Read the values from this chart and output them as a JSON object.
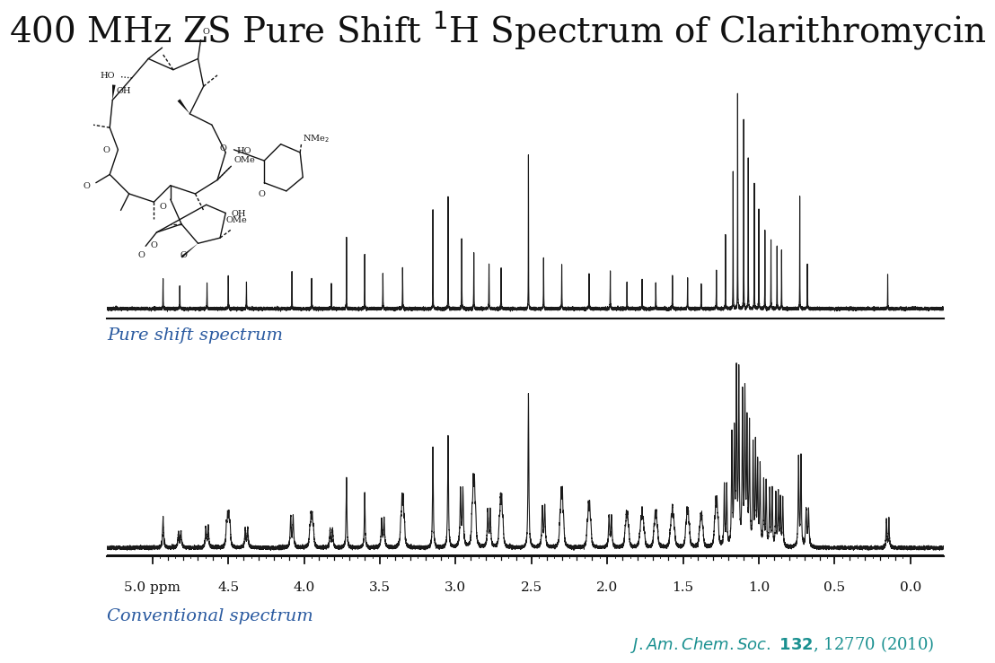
{
  "title": "400 MHz ZS Pure Shift $^{1}$H Spectrum of Clarithromycin",
  "title_fontsize": 28,
  "background_color": "#ffffff",
  "spectrum_color": "#1a1a1a",
  "label_color_blue": "#2a5aa0",
  "citation_color": "#1a9090",
  "x_ticks": [
    5.0,
    4.5,
    4.0,
    3.5,
    3.0,
    2.5,
    2.0,
    1.5,
    1.0,
    0.5,
    0.0
  ],
  "x_tick_labels": [
    "5.0 ppm",
    "4.5",
    "4.0",
    "3.5",
    "3.0",
    "2.5",
    "2.0",
    "1.5",
    "1.0",
    "0.5",
    "0.0"
  ],
  "pure_shift_label": "Pure shift spectrum",
  "conventional_label": "Conventional spectrum"
}
